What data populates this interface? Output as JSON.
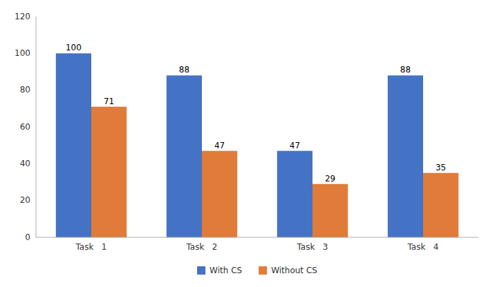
{
  "chart_data": {
    "type": "bar",
    "categories": [
      "Task   1",
      "Task   2",
      "Task   3",
      "Task   4"
    ],
    "series": [
      {
        "name": "With CS",
        "color": "#4472C4",
        "values": [
          100,
          88,
          47,
          88
        ]
      },
      {
        "name": "Without CS",
        "color": "#E07B39",
        "values": [
          71,
          47,
          29,
          35
        ]
      }
    ],
    "ylim": [
      0,
      120
    ],
    "yticks": [
      0,
      20,
      40,
      60,
      80,
      100,
      120
    ],
    "grid": false,
    "legend": "bottom",
    "data_labels": true
  }
}
